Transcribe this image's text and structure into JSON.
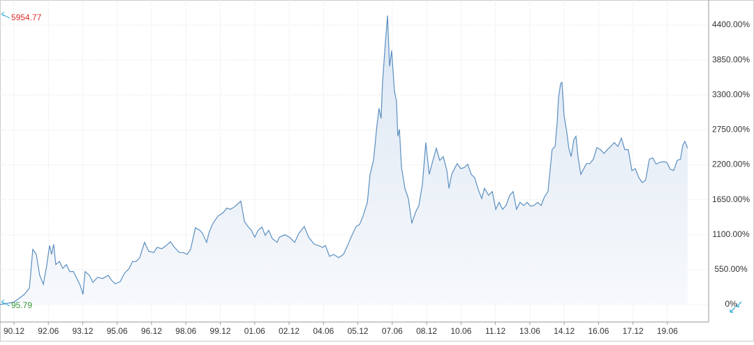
{
  "chart_data": {
    "type": "area-line",
    "x": [
      1990.31,
      1990.92,
      1991.37,
      1991.59,
      1991.74,
      1991.89,
      1992.04,
      1992.2,
      1992.35,
      1992.47,
      1992.56,
      1992.65,
      1992.74,
      1992.9,
      1993.05,
      1993.2,
      1993.35,
      1993.51,
      1993.66,
      1993.81,
      1993.93,
      1994.02,
      1994.21,
      1994.36,
      1994.57,
      1994.78,
      1995.03,
      1995.18,
      1995.33,
      1995.55,
      1995.73,
      1995.94,
      1996.09,
      1996.25,
      1996.4,
      1996.61,
      1996.79,
      1997.01,
      1997.16,
      1997.37,
      1997.56,
      1997.74,
      1997.92,
      1998.13,
      1998.29,
      1998.47,
      1998.62,
      1998.83,
      1999.02,
      1999.14,
      1999.32,
      1999.44,
      1999.6,
      1999.81,
      2000.05,
      2000.2,
      2000.36,
      2000.54,
      2000.66,
      2000.81,
      2000.97,
      2001.12,
      2001.27,
      2001.42,
      2001.57,
      2001.73,
      2001.88,
      2002.03,
      2002.18,
      2002.4,
      2002.49,
      2002.73,
      2002.94,
      2003.16,
      2003.34,
      2003.58,
      2003.77,
      2004.01,
      2004.19,
      2004.38,
      2004.5,
      2004.68,
      2004.86,
      2005.08,
      2005.29,
      2005.47,
      2005.62,
      2005.84,
      2005.99,
      2006.14,
      2006.33,
      2006.45,
      2006.6,
      2006.75,
      2006.84,
      2006.93,
      2006.99,
      2007.12,
      2007.21,
      2007.3,
      2007.39,
      2007.51,
      2007.6,
      2007.66,
      2007.73,
      2007.82,
      2007.97,
      2008.12,
      2008.27,
      2008.43,
      2008.58,
      2008.73,
      2008.88,
      2009.03,
      2009.19,
      2009.34,
      2009.49,
      2009.64,
      2009.8,
      2009.89,
      2010.01,
      2010.16,
      2010.25,
      2010.41,
      2010.56,
      2010.71,
      2010.86,
      2011.01,
      2011.17,
      2011.32,
      2011.44,
      2011.62,
      2011.78,
      2011.93,
      2012.08,
      2012.23,
      2012.38,
      2012.54,
      2012.69,
      2012.84,
      2012.99,
      2013.15,
      2013.3,
      2013.45,
      2013.6,
      2013.76,
      2013.91,
      2014.06,
      2014.21,
      2014.3,
      2014.39,
      2014.52,
      2014.61,
      2014.67,
      2014.76,
      2014.82,
      2014.91,
      2015.03,
      2015.12,
      2015.22,
      2015.34,
      2015.43,
      2015.52,
      2015.64,
      2015.73,
      2015.89,
      2016.04,
      2016.19,
      2016.34,
      2016.5,
      2016.65,
      2016.8,
      2016.95,
      2017.1,
      2017.26,
      2017.41,
      2017.56,
      2017.71,
      2017.87,
      2018.02,
      2018.17,
      2018.32,
      2018.47,
      2018.63,
      2018.78,
      2018.93,
      2019.08,
      2019.24,
      2019.39,
      2019.54,
      2019.69,
      2019.85,
      2019.99,
      2020.09,
      2020.18,
      2020.3
    ],
    "values": [
      0,
      40,
      160,
      260,
      870,
      790,
      460,
      320,
      630,
      930,
      790,
      950,
      630,
      680,
      570,
      630,
      520,
      520,
      410,
      300,
      160,
      520,
      460,
      350,
      430,
      410,
      460,
      380,
      330,
      360,
      490,
      570,
      680,
      680,
      740,
      980,
      840,
      820,
      900,
      880,
      930,
      990,
      900,
      820,
      820,
      790,
      870,
      1210,
      1170,
      1120,
      980,
      1150,
      1280,
      1390,
      1450,
      1520,
      1500,
      1540,
      1580,
      1630,
      1310,
      1230,
      1170,
      1060,
      1170,
      1220,
      1090,
      1170,
      1040,
      980,
      1060,
      1100,
      1060,
      980,
      1120,
      1230,
      1060,
      950,
      930,
      900,
      930,
      760,
      790,
      740,
      790,
      930,
      1060,
      1230,
      1260,
      1390,
      1610,
      2050,
      2270,
      2820,
      3090,
      2930,
      3480,
      4140,
      4550,
      3750,
      4000,
      3370,
      3200,
      2650,
      2760,
      2160,
      1830,
      1670,
      1280,
      1450,
      1560,
      1890,
      2550,
      2050,
      2270,
      2460,
      2270,
      2330,
      2110,
      1830,
      2050,
      2160,
      2220,
      2140,
      2160,
      2210,
      2050,
      2000,
      1810,
      1670,
      1830,
      1720,
      1780,
      1500,
      1610,
      1500,
      1560,
      1720,
      1780,
      1500,
      1610,
      1560,
      1610,
      1550,
      1560,
      1610,
      1560,
      1700,
      1780,
      2110,
      2440,
      2490,
      2870,
      3260,
      3480,
      3500,
      2980,
      2710,
      2460,
      2330,
      2600,
      2650,
      2330,
      2050,
      2110,
      2220,
      2220,
      2290,
      2470,
      2440,
      2380,
      2440,
      2490,
      2550,
      2490,
      2620,
      2440,
      2440,
      2110,
      2140,
      2000,
      1920,
      1960,
      2290,
      2310,
      2210,
      2240,
      2250,
      2240,
      2130,
      2110,
      2270,
      2290,
      2510,
      2570,
      2460
    ],
    "color": "#5b8fc0",
    "xlim": [
      1990.308,
      2021.216
    ],
    "xticks": [
      {
        "value": 1990.917,
        "label": "90.12"
      },
      {
        "value": 1992.417,
        "label": "92.06"
      },
      {
        "value": 1993.917,
        "label": "93.12"
      },
      {
        "value": 1995.417,
        "label": "95.06"
      },
      {
        "value": 1996.917,
        "label": "96.12"
      },
      {
        "value": 1998.417,
        "label": "98.06"
      },
      {
        "value": 1999.917,
        "label": "99.12"
      },
      {
        "value": 2001.417,
        "label": "01.06"
      },
      {
        "value": 2002.917,
        "label": "02.12"
      },
      {
        "value": 2004.417,
        "label": "04.06"
      },
      {
        "value": 2005.917,
        "label": "05.12"
      },
      {
        "value": 2007.417,
        "label": "07.06"
      },
      {
        "value": 2008.917,
        "label": "08.12"
      },
      {
        "value": 2010.417,
        "label": "10.06"
      },
      {
        "value": 2011.917,
        "label": "11.12"
      },
      {
        "value": 2013.417,
        "label": "13.06"
      },
      {
        "value": 2014.917,
        "label": "14.12"
      },
      {
        "value": 2016.417,
        "label": "16.06"
      },
      {
        "value": 2017.917,
        "label": "17.12"
      },
      {
        "value": 2019.417,
        "label": "19.06"
      }
    ],
    "ylim": [
      -274,
      4795
    ],
    "yticks": [
      {
        "value": 0,
        "label": "0%"
      },
      {
        "value": 550,
        "label": "550.00%"
      },
      {
        "value": 1100,
        "label": "1100.00%"
      },
      {
        "value": 1650,
        "label": "1650.00%"
      },
      {
        "value": 2200,
        "label": "2200.00%"
      },
      {
        "value": 2750,
        "label": "2750.00%"
      },
      {
        "value": 3300,
        "label": "3300.00%"
      },
      {
        "value": 3850,
        "label": "3850.00%"
      },
      {
        "value": 4400,
        "label": "4400.00%"
      }
    ],
    "grid": true,
    "annotations": [
      {
        "text": "5954.77",
        "color": "#d9302c"
      },
      {
        "text": "95.79",
        "color": "#3a9a3a"
      }
    ]
  }
}
